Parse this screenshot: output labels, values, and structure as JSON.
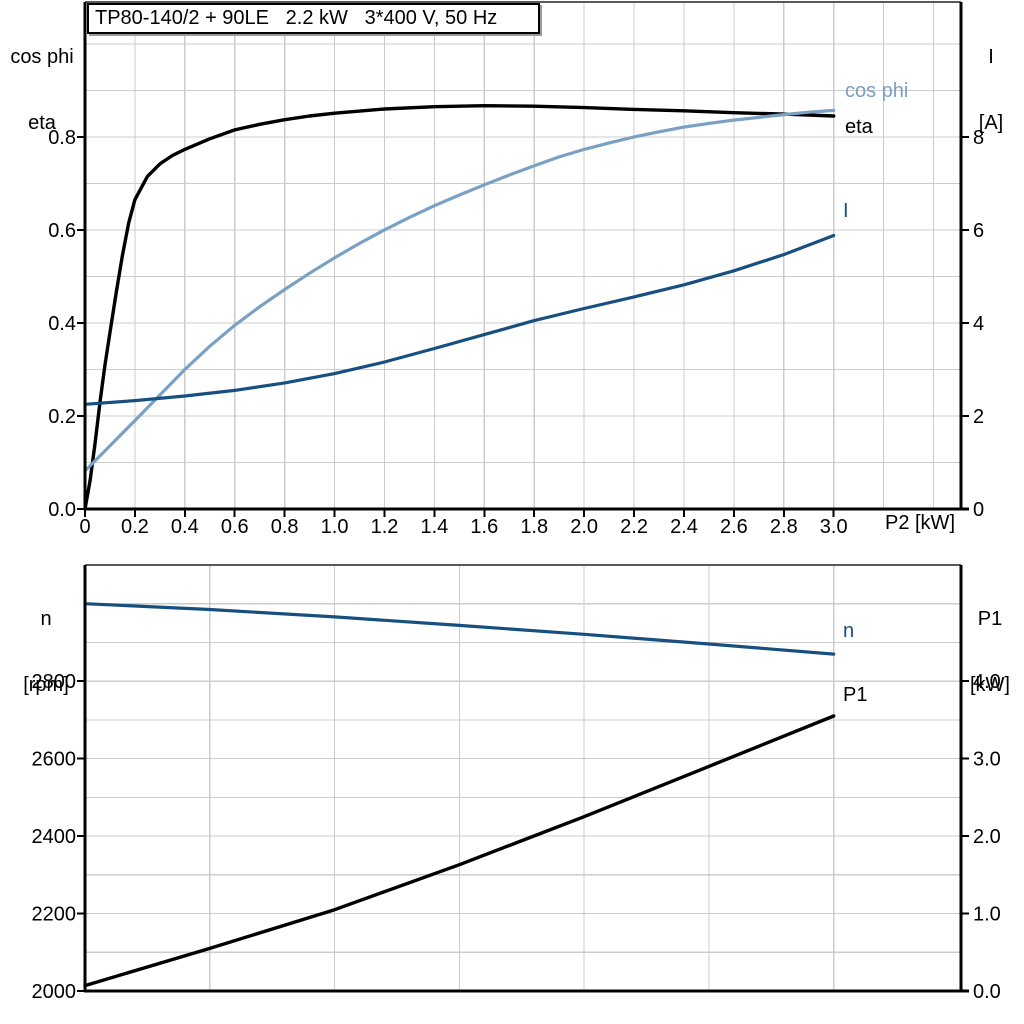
{
  "colors": {
    "black": "#000000",
    "steel_blue": "#7aa0c4",
    "dark_blue": "#175080",
    "grid": "#cccccc",
    "plot_border_gray": "#595959"
  },
  "chart_data": [
    {
      "type": "line",
      "title": "TP80-140/2 + 90LE   2.2 kW   3*400 V, 50 Hz",
      "xlabel": "P2 [kW]",
      "xlim": [
        0,
        3.51
      ],
      "x_grid_step": 0.2,
      "x_tick_values": [
        0,
        0.2,
        0.4,
        0.6,
        0.8,
        1.0,
        1.2,
        1.4,
        1.6,
        1.8,
        2.0,
        2.2,
        2.4,
        2.6,
        2.8,
        3.0
      ],
      "x_tick_labels": [
        "0",
        "0.2",
        "0.4",
        "0.6",
        "0.8",
        "1.0",
        "1.2",
        "1.4",
        "1.6",
        "1.8",
        "2.0",
        "2.2",
        "2.4",
        "2.6",
        "2.8",
        "3.0"
      ],
      "left_axis": {
        "title_lines": [
          "cos phi",
          "eta"
        ],
        "range": [
          0,
          1.09
        ],
        "grid_step": 0.1,
        "tick_values": [
          0,
          0.2,
          0.4,
          0.6,
          0.8
        ],
        "tick_labels": [
          "0.0",
          "0.2",
          "0.4",
          "0.6",
          "0.8"
        ]
      },
      "right_axis": {
        "title_lines": [
          "I",
          "[A]"
        ],
        "range": [
          0,
          10.9
        ],
        "tick_values": [
          0,
          2,
          4,
          6,
          8
        ],
        "tick_labels": [
          "0",
          "2",
          "4",
          "6",
          "8"
        ]
      },
      "series": [
        {
          "name": "eta",
          "label": "eta",
          "axis": "left",
          "color": "#000000",
          "width": 3.4,
          "points": [
            [
              0,
              0
            ],
            [
              0.02,
              0.06
            ],
            [
              0.04,
              0.14
            ],
            [
              0.06,
              0.23
            ],
            [
              0.08,
              0.31
            ],
            [
              0.1,
              0.38
            ],
            [
              0.125,
              0.465
            ],
            [
              0.15,
              0.545
            ],
            [
              0.175,
              0.615
            ],
            [
              0.2,
              0.665
            ],
            [
              0.25,
              0.715
            ],
            [
              0.3,
              0.742
            ],
            [
              0.35,
              0.76
            ],
            [
              0.4,
              0.773
            ],
            [
              0.5,
              0.796
            ],
            [
              0.6,
              0.815
            ],
            [
              0.7,
              0.827
            ],
            [
              0.8,
              0.837
            ],
            [
              0.9,
              0.845
            ],
            [
              1.0,
              0.851
            ],
            [
              1.2,
              0.86
            ],
            [
              1.4,
              0.865
            ],
            [
              1.6,
              0.867
            ],
            [
              1.8,
              0.866
            ],
            [
              2.0,
              0.863
            ],
            [
              2.2,
              0.859
            ],
            [
              2.4,
              0.856
            ],
            [
              2.6,
              0.852
            ],
            [
              2.8,
              0.849
            ],
            [
              3.0,
              0.845
            ]
          ]
        },
        {
          "name": "cos phi",
          "label": "cos phi",
          "axis": "left",
          "color": "#7aa0c4",
          "width": 3.2,
          "points": [
            [
              0,
              0.082
            ],
            [
              0.1,
              0.136
            ],
            [
              0.2,
              0.19
            ],
            [
              0.3,
              0.245
            ],
            [
              0.4,
              0.3
            ],
            [
              0.5,
              0.35
            ],
            [
              0.6,
              0.395
            ],
            [
              0.7,
              0.435
            ],
            [
              0.8,
              0.472
            ],
            [
              0.9,
              0.507
            ],
            [
              1.0,
              0.54
            ],
            [
              1.1,
              0.571
            ],
            [
              1.2,
              0.6
            ],
            [
              1.3,
              0.627
            ],
            [
              1.4,
              0.652
            ],
            [
              1.5,
              0.675
            ],
            [
              1.6,
              0.697
            ],
            [
              1.7,
              0.718
            ],
            [
              1.8,
              0.738
            ],
            [
              1.9,
              0.757
            ],
            [
              2.0,
              0.773
            ],
            [
              2.1,
              0.787
            ],
            [
              2.2,
              0.8
            ],
            [
              2.3,
              0.811
            ],
            [
              2.4,
              0.821
            ],
            [
              2.5,
              0.829
            ],
            [
              2.6,
              0.836
            ],
            [
              2.7,
              0.842
            ],
            [
              2.8,
              0.848
            ],
            [
              2.9,
              0.853
            ],
            [
              3.0,
              0.857
            ]
          ]
        },
        {
          "name": "I",
          "label": "I",
          "axis": "right",
          "color": "#175080",
          "width": 3.2,
          "points": [
            [
              0,
              2.25
            ],
            [
              0.2,
              2.33
            ],
            [
              0.4,
              2.43
            ],
            [
              0.6,
              2.55
            ],
            [
              0.8,
              2.71
            ],
            [
              1.0,
              2.91
            ],
            [
              1.2,
              3.16
            ],
            [
              1.4,
              3.45
            ],
            [
              1.6,
              3.75
            ],
            [
              1.8,
              4.05
            ],
            [
              2.0,
              4.31
            ],
            [
              2.2,
              4.56
            ],
            [
              2.4,
              4.82
            ],
            [
              2.6,
              5.12
            ],
            [
              2.8,
              5.47
            ],
            [
              3.0,
              5.88
            ]
          ]
        }
      ]
    },
    {
      "type": "line",
      "xlim": [
        0,
        3.51
      ],
      "x_grid_step": 0.5,
      "x_tick_values": [],
      "x_tick_labels": [],
      "left_axis": {
        "title_lines": [
          "n",
          "[rpm]"
        ],
        "range": [
          2000,
          3100
        ],
        "grid_step": 100,
        "tick_values": [
          2000,
          2200,
          2400,
          2600,
          2800
        ],
        "tick_labels": [
          "2000",
          "2200",
          "2400",
          "2600",
          "2800"
        ]
      },
      "right_axis": {
        "title_lines": [
          "P1",
          "[kW]"
        ],
        "range": [
          0,
          5.5
        ],
        "tick_values": [
          0,
          1,
          2,
          3,
          4
        ],
        "tick_labels": [
          "0.0",
          "1.0",
          "2.0",
          "3.0",
          "4.0"
        ]
      },
      "series": [
        {
          "name": "n",
          "label": "n",
          "axis": "left",
          "color": "#175080",
          "width": 3.2,
          "points": [
            [
              0,
              3000
            ],
            [
              0.5,
              2985
            ],
            [
              1.0,
              2966
            ],
            [
              1.5,
              2944
            ],
            [
              2.0,
              2921
            ],
            [
              2.5,
              2896
            ],
            [
              3.0,
              2870
            ]
          ]
        },
        {
          "name": "P1",
          "label": "P1",
          "axis": "right",
          "color": "#000000",
          "width": 3.4,
          "points": [
            [
              0,
              0.07
            ],
            [
              0.5,
              0.55
            ],
            [
              1.0,
              1.05
            ],
            [
              1.5,
              1.63
            ],
            [
              2.0,
              2.25
            ],
            [
              2.5,
              2.9
            ],
            [
              3.0,
              3.55
            ]
          ]
        }
      ]
    }
  ]
}
